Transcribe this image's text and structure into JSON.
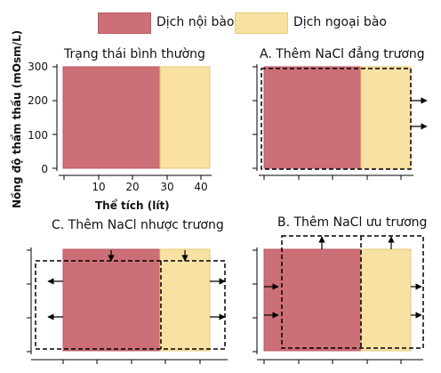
{
  "legend": {
    "intracellular": {
      "label": "Dịch nội bào",
      "color": "#cd6f76"
    },
    "extracellular": {
      "label": "Dịch ngoại bào",
      "color": "#f7e2a4"
    }
  },
  "axes": {
    "y_title": "Nồng độ thẩm thấu (mOsm/L)",
    "x_title": "Thể tích (lít)",
    "y_ticks": [
      "0",
      "100",
      "200",
      "300"
    ],
    "x_ticks": [
      "10",
      "20",
      "30",
      "40"
    ]
  },
  "panels": {
    "normal": {
      "title": "Trạng thái bình thường"
    },
    "a": {
      "title": "A. Thêm NaCl đẳng trương"
    },
    "b": {
      "title": "B. Thêm NaCl ưu trương"
    },
    "c": {
      "title": "C. Thêm NaCl nhược trương"
    }
  },
  "chart_data": {
    "type": "area",
    "xlabel": "Thể tích (lít)",
    "ylabel": "Nồng độ thẩm thấu (mOsm/L)",
    "xlim": [
      0,
      42
    ],
    "ylim": [
      0,
      300
    ],
    "series": [
      {
        "name": "Dịch nội bào",
        "x": [
          0,
          28
        ],
        "y": 300
      },
      {
        "name": "Dịch ngoại bào",
        "x": [
          28,
          42
        ],
        "y": 300
      }
    ]
  }
}
